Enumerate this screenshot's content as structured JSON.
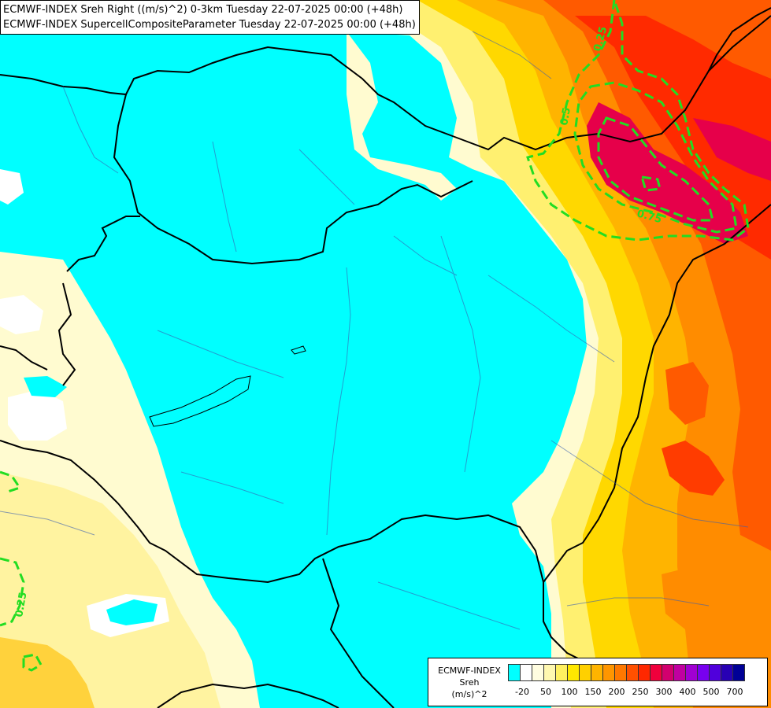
{
  "header": {
    "line1": "ECMWF-INDEX Sreh Right ((m/s)^2) 0-3km Tuesday 22-07-2025 00:00 (+48h)",
    "line2": "ECMWF-INDEX SupercellCompositeParameter Tuesday 22-07-2025 00:00 (+48h)"
  },
  "legend": {
    "title_line1": "ECMWF-INDEX",
    "title_line2": "Sreh",
    "title_line3": "(m/s)^2",
    "colors": [
      "#00ffff",
      "#ffffff",
      "#fffde0",
      "#fff8b0",
      "#fff060",
      "#ffe800",
      "#ffd000",
      "#ffb400",
      "#ff9600",
      "#ff7800",
      "#ff5000",
      "#ff2800",
      "#f0003c",
      "#d2006e",
      "#c000a0",
      "#a000d2",
      "#7800f0",
      "#5000dc",
      "#2800b4",
      "#000096"
    ],
    "ticks": [
      {
        "label": "-20",
        "at": 1
      },
      {
        "label": "50",
        "at": 3
      },
      {
        "label": "100",
        "at": 5
      },
      {
        "label": "150",
        "at": 7
      },
      {
        "label": "200",
        "at": 9
      },
      {
        "label": "250",
        "at": 11
      },
      {
        "label": "300",
        "at": 13
      },
      {
        "label": "400",
        "at": 15
      },
      {
        "label": "500",
        "at": 17
      },
      {
        "label": "700",
        "at": 19
      }
    ]
  },
  "contour_labels": [
    {
      "text": "0.25"
    },
    {
      "text": "0.5"
    },
    {
      "text": "0.75"
    },
    {
      "text": "0.25"
    }
  ]
}
